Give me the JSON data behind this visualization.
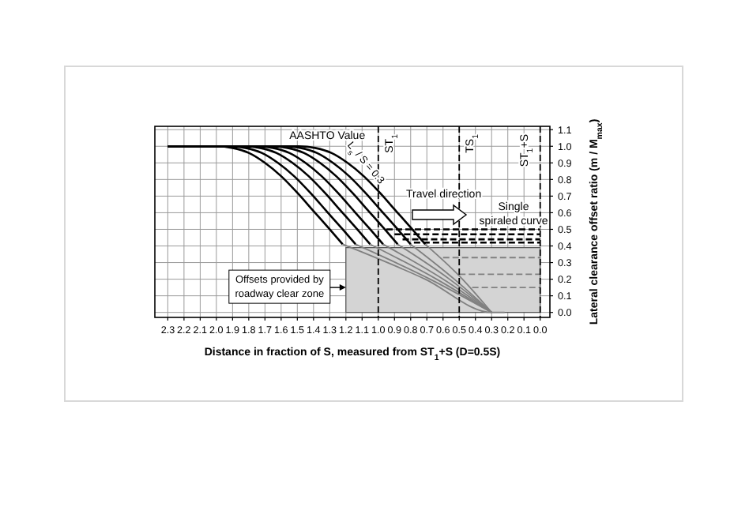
{
  "chart_data": {
    "type": "line",
    "xlabel": "Distance in fraction of S, measured from ST$_{1}$+S (D=0.5S)",
    "ylabel": "Lateral clearance offset ratio (m / M$_{max}$)",
    "xlim": [
      2.38,
      -0.06
    ],
    "ylim": [
      -0.03,
      1.12
    ],
    "xticks": [
      2.3,
      2.2,
      2.1,
      {
        "value": 2,
        "label": "2.0"
      },
      1.9,
      1.8,
      1.7,
      1.6,
      1.5,
      1.4,
      1.3,
      1.2,
      1.1,
      {
        "value": 1,
        "label": "1.0"
      },
      0.9,
      0.8,
      0.7,
      0.6,
      0.5,
      0.4,
      0.3,
      0.2,
      0.1,
      {
        "value": 0,
        "label": "0.0"
      }
    ],
    "yticks": [
      {
        "value": 0,
        "label": "0.0"
      },
      0.1,
      0.2,
      0.3,
      0.4,
      0.5,
      0.6,
      0.7,
      0.8,
      0.9,
      {
        "value": 1,
        "label": "1.0"
      },
      1.1
    ],
    "grid": true,
    "marker": "none",
    "series": [
      {
        "type": "area",
        "color": "#d4d4d4",
        "x": [
          1.2,
          0
        ],
        "values": [
          0.39,
          0.39
        ]
      },
      {
        "color": "#000000",
        "x": [
          2.3,
          2.0,
          1.9,
          1.8,
          1.7,
          1.6,
          1.5,
          1.4,
          1.3,
          1.22
        ],
        "values": [
          1,
          1,
          0.99,
          0.96,
          0.9,
          0.82,
          0.72,
          0.61,
          0.5,
          0.41
        ]
      },
      {
        "color": "#000000",
        "x": [
          2.3,
          1.92,
          1.82,
          1.72,
          1.62,
          1.52,
          1.42,
          1.32,
          1.22,
          1.14
        ],
        "values": [
          1,
          1,
          0.99,
          0.96,
          0.9,
          0.82,
          0.72,
          0.61,
          0.5,
          0.41
        ]
      },
      {
        "color": "#000000",
        "x": [
          2.3,
          1.83,
          1.73,
          1.63,
          1.53,
          1.43,
          1.33,
          1.23,
          1.13,
          1.05
        ],
        "values": [
          1,
          1,
          0.99,
          0.96,
          0.9,
          0.82,
          0.72,
          0.61,
          0.5,
          0.41
        ]
      },
      {
        "color": "#000000",
        "x": [
          2.3,
          1.75,
          1.65,
          1.55,
          1.45,
          1.35,
          1.25,
          1.15,
          1.05,
          0.97
        ],
        "values": [
          1,
          1,
          0.99,
          0.96,
          0.9,
          0.82,
          0.72,
          0.61,
          0.5,
          0.41
        ]
      },
      {
        "color": "#000000",
        "x": [
          2.3,
          1.66,
          1.56,
          1.46,
          1.36,
          1.26,
          1.16,
          1.06,
          0.96,
          0.88
        ],
        "values": [
          1,
          1,
          0.99,
          0.96,
          0.9,
          0.82,
          0.72,
          0.61,
          0.5,
          0.41
        ]
      },
      {
        "color": "#000000",
        "x": [
          2.3,
          1.58,
          1.48,
          1.38,
          1.28,
          1.18,
          1.08,
          0.98,
          0.88,
          0.8
        ],
        "values": [
          1,
          1,
          0.99,
          0.96,
          0.9,
          0.82,
          0.72,
          0.61,
          0.5,
          0.41
        ]
      },
      {
        "color": "#000000",
        "x": [
          2.3,
          1.49,
          1.39,
          1.29,
          1.19,
          1.09,
          0.99,
          0.89,
          0.79,
          0.71
        ],
        "values": [
          1,
          1,
          0.99,
          0.96,
          0.9,
          0.82,
          0.72,
          0.61,
          0.5,
          0.41
        ]
      },
      {
        "color": "#808080",
        "x": [
          1.22,
          0.71,
          0.3,
          0.22
        ],
        "values": [
          0.41,
          0.2,
          0,
          0
        ]
      },
      {
        "color": "#808080",
        "x": [
          1.14,
          0.68,
          0.3
        ],
        "values": [
          0.41,
          0.2,
          0
        ]
      },
      {
        "color": "#808080",
        "x": [
          1.05,
          0.64,
          0.3
        ],
        "values": [
          0.41,
          0.2,
          0
        ]
      },
      {
        "color": "#808080",
        "x": [
          0.97,
          0.6,
          0.3
        ],
        "values": [
          0.41,
          0.2,
          0
        ]
      },
      {
        "color": "#808080",
        "x": [
          0.88,
          0.56,
          0.3
        ],
        "values": [
          0.41,
          0.2,
          0
        ]
      },
      {
        "color": "#808080",
        "x": [
          0.8,
          0.53,
          0.3
        ],
        "values": [
          0.41,
          0.2,
          0
        ]
      },
      {
        "color": "#808080",
        "x": [
          0.71,
          0.48,
          0.3
        ],
        "values": [
          0.41,
          0.2,
          0
        ]
      },
      {
        "color": "#000000",
        "line_style": "dashed",
        "x": [
          0.95,
          0
        ],
        "values": [
          0.5,
          0.5
        ]
      },
      {
        "color": "#000000",
        "line_style": "dashed",
        "x": [
          0.9,
          0
        ],
        "values": [
          0.47,
          0.47
        ]
      },
      {
        "color": "#000000",
        "line_style": "dashed",
        "x": [
          0.85,
          0
        ],
        "values": [
          0.44,
          0.44
        ]
      },
      {
        "color": "#000000",
        "line_style": "dashed",
        "x": [
          0.78,
          0
        ],
        "values": [
          0.42,
          0.42
        ]
      },
      {
        "color": "#808080",
        "line_style": "dashed",
        "x": [
          0.6,
          0
        ],
        "values": [
          0.33,
          0.33
        ]
      },
      {
        "color": "#808080",
        "line_style": "dashed",
        "x": [
          0.5,
          0
        ],
        "values": [
          0.23,
          0.23
        ]
      },
      {
        "color": "#808080",
        "line_style": "dashed",
        "x": [
          0.42,
          0
        ],
        "values": [
          0.15,
          0.15
        ]
      }
    ],
    "ref_lines": [
      {
        "axis": "x",
        "value": 1,
        "label": "ST$_{1}$",
        "line_style": "dashed"
      },
      {
        "axis": "x",
        "value": 0.5,
        "label": "TS$_{1}$",
        "line_style": "dashed"
      },
      {
        "axis": "x",
        "value": 0,
        "label": "ST$_{1}$+S",
        "line_style": "dashed"
      }
    ],
    "annotations": [
      {
        "text": "L$_{s}$ / S = 0.3",
        "x": 1.14,
        "y": 0.85
      },
      {
        "text": "Offsets provided by roadway clear zone",
        "x": 1.2,
        "y": 0.15
      },
      "Travel direction",
      "Single spiraled curve",
      "AASHTO Value"
    ]
  }
}
